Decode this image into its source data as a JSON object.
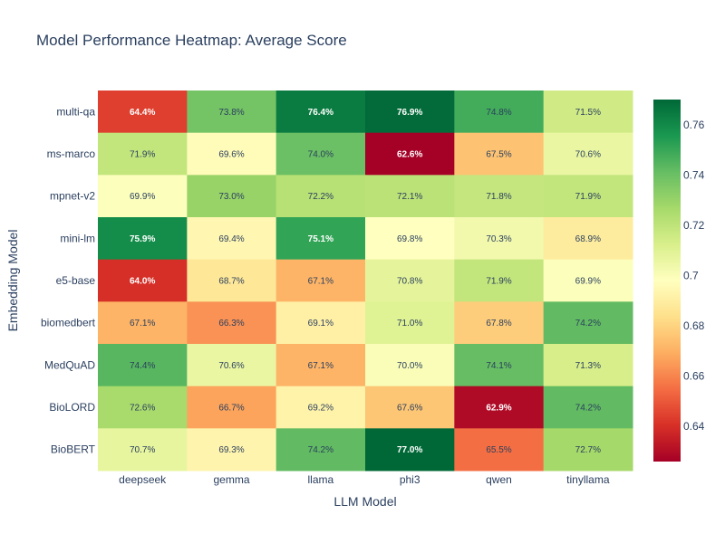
{
  "chart_data": {
    "type": "heatmap",
    "title": "Model Performance Heatmap: Average Score",
    "xlabel": "LLM Model",
    "ylabel": "Embedding Model",
    "x": [
      "deepseek",
      "gemma",
      "llama",
      "phi3",
      "qwen",
      "tinyllama"
    ],
    "y": [
      "multi-qa",
      "ms-marco",
      "mpnet-v2",
      "mini-lm",
      "e5-base",
      "biomedbert",
      "MedQuAD",
      "BioLORD",
      "BioBERT"
    ],
    "values": [
      [
        0.644,
        0.738,
        0.764,
        0.769,
        0.748,
        0.715
      ],
      [
        0.719,
        0.696,
        0.74,
        0.626,
        0.675,
        0.706
      ],
      [
        0.699,
        0.73,
        0.722,
        0.721,
        0.718,
        0.719
      ],
      [
        0.759,
        0.694,
        0.751,
        0.698,
        0.703,
        0.689
      ],
      [
        0.64,
        0.687,
        0.671,
        0.708,
        0.719,
        0.699
      ],
      [
        0.671,
        0.663,
        0.691,
        0.71,
        0.678,
        0.742
      ],
      [
        0.744,
        0.706,
        0.671,
        0.7,
        0.741,
        0.713
      ],
      [
        0.726,
        0.667,
        0.692,
        0.676,
        0.629,
        0.742
      ],
      [
        0.707,
        0.693,
        0.742,
        0.77,
        0.655,
        0.727
      ]
    ],
    "cell_labels": [
      [
        "64.4%",
        "73.8%",
        "76.4%",
        "76.9%",
        "74.8%",
        "71.5%"
      ],
      [
        "71.9%",
        "69.6%",
        "74.0%",
        "62.6%",
        "67.5%",
        "70.6%"
      ],
      [
        "69.9%",
        "73.0%",
        "72.2%",
        "72.1%",
        "71.8%",
        "71.9%"
      ],
      [
        "75.9%",
        "69.4%",
        "75.1%",
        "69.8%",
        "70.3%",
        "68.9%"
      ],
      [
        "64.0%",
        "68.7%",
        "67.1%",
        "70.8%",
        "71.9%",
        "69.9%"
      ],
      [
        "67.1%",
        "66.3%",
        "69.1%",
        "71.0%",
        "67.8%",
        "74.2%"
      ],
      [
        "74.4%",
        "70.6%",
        "67.1%",
        "70.0%",
        "74.1%",
        "71.3%"
      ],
      [
        "72.6%",
        "66.7%",
        "69.2%",
        "67.6%",
        "62.9%",
        "74.2%"
      ],
      [
        "70.7%",
        "69.3%",
        "74.2%",
        "77.0%",
        "65.5%",
        "72.7%"
      ]
    ],
    "zlim": [
      0.626,
      0.77
    ],
    "colorscale": "RdYlGn",
    "colorscale_stops": [
      "#a50026",
      "#d73027",
      "#f46d43",
      "#fdae61",
      "#fee08b",
      "#ffffbf",
      "#d9ef8b",
      "#a6d96a",
      "#66bd63",
      "#1a9850",
      "#006837"
    ],
    "colorbar_ticks": [
      0.64,
      0.66,
      0.68,
      0.7,
      0.72,
      0.74,
      0.76
    ],
    "colorbar_tick_labels": [
      "0.64",
      "0.66",
      "0.68",
      "0.7",
      "0.72",
      "0.74",
      "0.76"
    ],
    "colorbar_placement": "right",
    "grid": false
  }
}
